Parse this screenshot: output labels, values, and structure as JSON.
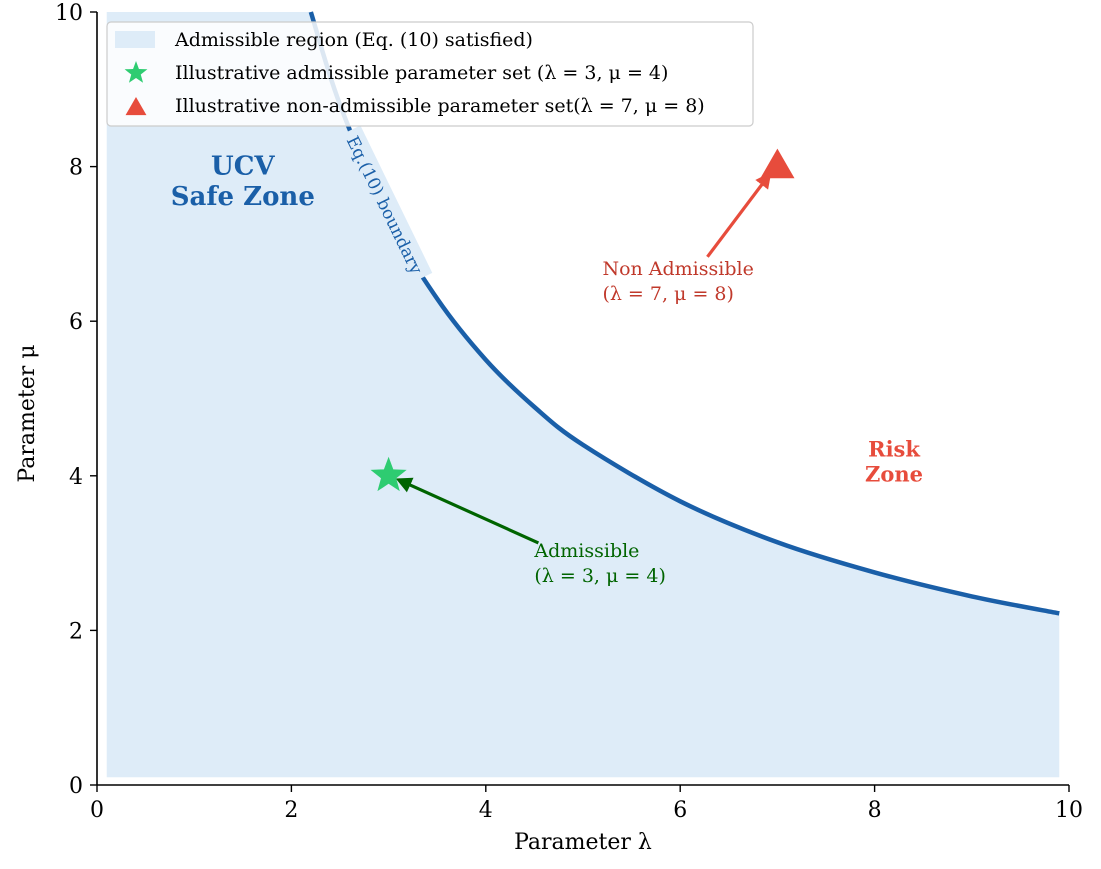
{
  "chart_data": {
    "type": "line",
    "xlabel": "Parameter λ",
    "ylabel": "Parameter μ",
    "xlim": [
      0,
      10
    ],
    "ylim": [
      0,
      10
    ],
    "xticks": [
      "0",
      "2",
      "4",
      "6",
      "8",
      "10"
    ],
    "yticks": [
      "0",
      "2",
      "4",
      "6",
      "8",
      "10"
    ],
    "grid": false,
    "legend_placement": "top-left",
    "boundary": {
      "label": "Eq.(10) boundary",
      "color": "#1a5fa8",
      "x": [
        2.2,
        2.5,
        3.0,
        3.5,
        4.0,
        4.5,
        5.0,
        6.0,
        7.0,
        8.0,
        9.0,
        9.9
      ],
      "y": [
        10.0,
        8.8,
        7.33,
        6.29,
        5.5,
        4.89,
        4.4,
        3.67,
        3.14,
        2.75,
        2.44,
        2.22
      ]
    },
    "region": {
      "legend": "Admissible region (Eq. (10) satisfied)",
      "color": "#deecf8",
      "x_range": [
        0.1,
        9.9
      ],
      "y_floor": 0.1
    },
    "points": [
      {
        "legend": "Illustrative admissible parameter set (λ = 3, μ = 4)",
        "x": 3,
        "y": 4,
        "marker": "star",
        "color": "#2ecc71",
        "annotation_line1": "Admissible",
        "annotation_line2": "(λ = 3, μ = 4)",
        "annotation_color": "#006400",
        "annotation_x": 4.5,
        "annotation_y": 2.95
      },
      {
        "legend": "Illustrative non-admissible parameter set(λ = 7, μ = 8)",
        "x": 7,
        "y": 8,
        "marker": "triangle",
        "color": "#e74c3c",
        "annotation_line1": "Non Admissible",
        "annotation_line2": "(λ = 7, μ = 8)",
        "annotation_color": "#c0392b",
        "annotation_x": 5.2,
        "annotation_y": 6.6
      }
    ],
    "zone_labels": [
      {
        "line1": "UCV",
        "line2": "Safe Zone",
        "x": 1.5,
        "y": 7.9,
        "color": "#1a5fa8",
        "size": 26
      },
      {
        "line1": "Risk",
        "line2": "Zone",
        "x": 8.2,
        "y": 4.25,
        "color": "#e74c3c",
        "size": 21
      }
    ]
  }
}
